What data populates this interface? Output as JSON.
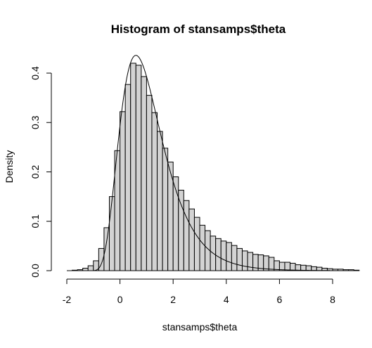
{
  "chart_data": {
    "type": "bar",
    "title": "Histogram of stansamps$theta",
    "xlabel": "stansamps$theta",
    "ylabel": "Density",
    "xlim": [
      -2,
      8.4
    ],
    "ylim": [
      0,
      0.43
    ],
    "x_ticks": [
      -2,
      0,
      2,
      4,
      6,
      8
    ],
    "y_ticks": [
      0.0,
      0.1,
      0.2,
      0.3,
      0.4
    ],
    "x_tick_labels": [
      "-2",
      "0",
      "2",
      "4",
      "6",
      "8"
    ],
    "y_tick_labels": [
      "0.0",
      "0.1",
      "0.2",
      "0.3",
      "0.4"
    ],
    "grid": false,
    "legend": "none",
    "bin_width": 0.2,
    "bins_start": -1.8,
    "densities": [
      0.001,
      0.002,
      0.005,
      0.01,
      0.02,
      0.045,
      0.087,
      0.15,
      0.243,
      0.322,
      0.377,
      0.42,
      0.416,
      0.393,
      0.355,
      0.32,
      0.282,
      0.248,
      0.22,
      0.19,
      0.163,
      0.142,
      0.125,
      0.108,
      0.092,
      0.081,
      0.07,
      0.065,
      0.06,
      0.057,
      0.051,
      0.045,
      0.04,
      0.037,
      0.033,
      0.032,
      0.03,
      0.027,
      0.02,
      0.017,
      0.017,
      0.015,
      0.012,
      0.011,
      0.01,
      0.008,
      0.007,
      0.005,
      0.004,
      0.003,
      0.003,
      0.002,
      0.002,
      0.001
    ],
    "density_curve": {
      "type": "lognormal",
      "location": 0.4,
      "sdlog": 0.4,
      "logsigma_shift": 1.4,
      "peak": [
        0.6,
        0.436
      ]
    }
  }
}
